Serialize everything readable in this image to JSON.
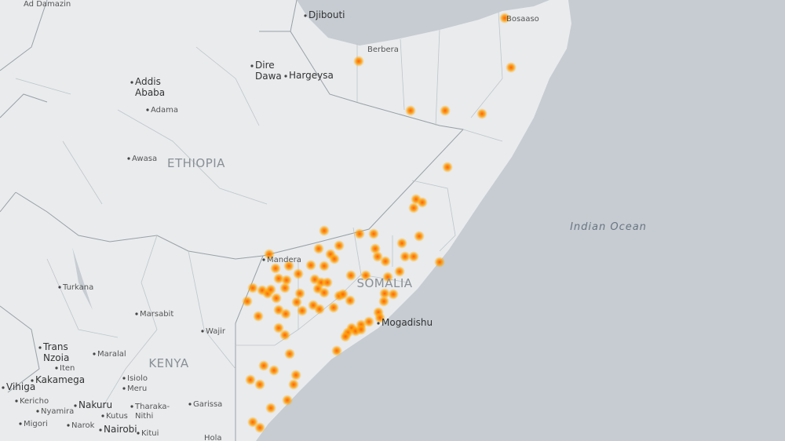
{
  "map": {
    "countries": [
      "ETHIOPIA",
      "SOMALIA",
      "KENYA"
    ],
    "ocean": "Indian Ocean",
    "cities": [
      {
        "label": [
          "Ad Damazin"
        ]
      },
      {
        "label": [
          "Djibouti"
        ]
      },
      {
        "label": [
          "Bosaaso"
        ]
      },
      {
        "label": [
          "Berbera"
        ]
      },
      {
        "label": [
          "Dire",
          "Dawa"
        ]
      },
      {
        "label": [
          "Hargeysa"
        ]
      },
      {
        "label": [
          "Addis",
          "Ababa"
        ]
      },
      {
        "label": [
          "Adama"
        ]
      },
      {
        "label": [
          "Awasa"
        ]
      },
      {
        "label": [
          "Mandera"
        ]
      },
      {
        "label": [
          "Turkana"
        ]
      },
      {
        "label": [
          "Marsabit"
        ]
      },
      {
        "label": [
          "Wajir"
        ]
      },
      {
        "label": [
          "Mogadishu"
        ]
      },
      {
        "label": [
          "Trans",
          "Nzoia"
        ]
      },
      {
        "label": [
          "Maralal"
        ]
      },
      {
        "label": [
          "Iten"
        ]
      },
      {
        "label": [
          "Kakamega"
        ]
      },
      {
        "label": [
          "Vihiga"
        ]
      },
      {
        "label": [
          "Kericho"
        ]
      },
      {
        "label": [
          "Nyamira"
        ]
      },
      {
        "label": [
          "Migori"
        ]
      },
      {
        "label": [
          "Nakuru"
        ]
      },
      {
        "label": [
          "Kutus"
        ]
      },
      {
        "label": [
          "Narok"
        ]
      },
      {
        "label": [
          "Nairobi"
        ]
      },
      {
        "label": [
          "Kitui"
        ]
      },
      {
        "label": [
          "Isiolo"
        ]
      },
      {
        "label": [
          "Meru"
        ]
      },
      {
        "label": [
          "Tharaka-",
          "Nithi"
        ]
      },
      {
        "label": [
          "Garissa"
        ]
      },
      {
        "label": [
          "Hola"
        ]
      }
    ]
  }
}
